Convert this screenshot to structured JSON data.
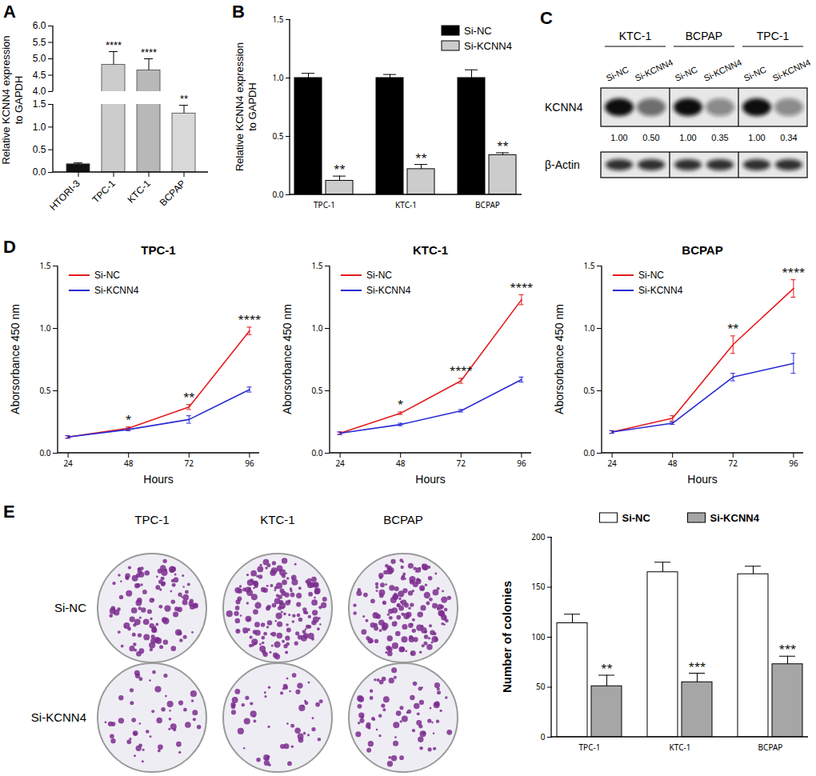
{
  "chart_data": [
    {
      "panel": "A",
      "type": "bar",
      "categories": [
        "HTORI-3",
        "TPC-1",
        "KTC-1",
        "BCPAP"
      ],
      "values": [
        0.18,
        4.82,
        4.65,
        1.3
      ],
      "errors": [
        0.03,
        0.4,
        0.35,
        0.18
      ],
      "significance": [
        null,
        "****",
        "****",
        "**"
      ],
      "colors": [
        "#111111",
        "#cccccc",
        "#b8b8b8",
        "#d9d9d9"
      ],
      "ylabel": "Relative KCNN4 expression\nto GAPDH",
      "ylim": [
        0,
        6
      ],
      "y_break": [
        1.5,
        4
      ],
      "yticks": [
        {
          "value": 0,
          "label": "0.0"
        },
        0.5,
        {
          "value": 1,
          "label": "1.0"
        },
        1.5,
        {
          "value": 4,
          "label": "4.0"
        },
        4.5,
        {
          "value": 5,
          "label": "5.0"
        },
        5.5,
        {
          "value": 6,
          "label": "6.0"
        }
      ]
    },
    {
      "panel": "B",
      "type": "bar",
      "categories": [
        "TPC-1",
        "KTC-1",
        "BCPAP"
      ],
      "series": [
        {
          "name": "Si-NC",
          "color": "#000000",
          "values": [
            1,
            1,
            1
          ],
          "errors": [
            0.04,
            0.03,
            0.07
          ],
          "significance": [
            null,
            null,
            null
          ]
        },
        {
          "name": "Si-KCNN4",
          "color": "#cccccc",
          "values": [
            0.12,
            0.22,
            0.34
          ],
          "errors": [
            0.04,
            0.04,
            0.02
          ],
          "significance": [
            "**",
            "**",
            "**"
          ]
        }
      ],
      "ylabel": "Relative KCNN4 expression\nto GAPDH",
      "ylim": [
        0,
        1.5
      ],
      "yticks": [
        {
          "value": 0,
          "label": "0.0"
        },
        0.5,
        {
          "value": 1,
          "label": "1.0"
        },
        1.5
      ],
      "legend": "top-right"
    },
    {
      "panel": "D",
      "type": "line",
      "title": "TPC-1",
      "x": [
        24,
        48,
        72,
        96
      ],
      "series": [
        {
          "name": "Si-NC",
          "color": "#e41a1c",
          "values": [
            0.13,
            0.2,
            0.37,
            0.98
          ],
          "errors": [
            0.01,
            0.01,
            0.02,
            0.03
          ]
        },
        {
          "name": "Si-KCNN4",
          "color": "#2a2ad4",
          "values": [
            0.13,
            0.19,
            0.27,
            0.51
          ],
          "errors": [
            0.01,
            0.01,
            0.03,
            0.02
          ]
        }
      ],
      "significance": [
        null,
        "*",
        "**",
        "****"
      ],
      "xlabel": "Hours",
      "ylabel": "Aborsorbance 450 nm",
      "xlim": [
        20,
        100
      ],
      "xticks": [
        24,
        48,
        72,
        96
      ],
      "ylim": [
        0,
        1.5
      ],
      "yticks": [
        {
          "value": 0,
          "label": "0.0"
        },
        0.5,
        {
          "value": 1,
          "label": "1.0"
        },
        1.5
      ],
      "legend": "top-left"
    },
    {
      "panel": "D",
      "type": "line",
      "title": "KTC-1",
      "x": [
        24,
        48,
        72,
        96
      ],
      "series": [
        {
          "name": "Si-NC",
          "color": "#e41a1c",
          "values": [
            0.16,
            0.32,
            0.58,
            1.23
          ],
          "errors": [
            0.01,
            0.01,
            0.02,
            0.04
          ]
        },
        {
          "name": "Si-KCNN4",
          "color": "#2a2ad4",
          "values": [
            0.16,
            0.23,
            0.34,
            0.59
          ],
          "errors": [
            0.01,
            0.01,
            0.01,
            0.02
          ]
        }
      ],
      "significance": [
        null,
        "*",
        "****",
        "****"
      ],
      "xlabel": "Hours",
      "ylabel": "Aborsorbance 450 nm",
      "xlim": [
        20,
        100
      ],
      "xticks": [
        24,
        48,
        72,
        96
      ],
      "ylim": [
        0,
        1.5
      ],
      "yticks": [
        {
          "value": 0,
          "label": "0.0"
        },
        0.5,
        {
          "value": 1,
          "label": "1.0"
        },
        1.5
      ],
      "legend": "top-left"
    },
    {
      "panel": "D",
      "type": "line",
      "title": "BCPAP",
      "x": [
        24,
        48,
        72,
        96
      ],
      "series": [
        {
          "name": "Si-NC",
          "color": "#e41a1c",
          "values": [
            0.17,
            0.28,
            0.87,
            1.32
          ],
          "errors": [
            0.01,
            0.02,
            0.07,
            0.07
          ]
        },
        {
          "name": "Si-KCNN4",
          "color": "#2a2ad4",
          "values": [
            0.17,
            0.24,
            0.61,
            0.72
          ],
          "errors": [
            0.01,
            0.01,
            0.03,
            0.08
          ]
        }
      ],
      "significance": [
        null,
        null,
        "**",
        "****"
      ],
      "xlabel": "Hours",
      "ylabel": "Aborsorbance 450 nm",
      "xlim": [
        20,
        100
      ],
      "xticks": [
        24,
        48,
        72,
        96
      ],
      "ylim": [
        0,
        1.5
      ],
      "yticks": [
        {
          "value": 0,
          "label": "0.0"
        },
        0.5,
        {
          "value": 1,
          "label": "1.0"
        },
        1.5
      ],
      "legend": "top-left"
    },
    {
      "panel": "E",
      "type": "bar",
      "categories": [
        "TPC-1",
        "KTC-1",
        "BCPAP"
      ],
      "series": [
        {
          "name": "Si-NC",
          "color": "#ffffff",
          "values": [
            114,
            165,
            163
          ],
          "errors": [
            9,
            10,
            8
          ],
          "significance": [
            null,
            null,
            null
          ]
        },
        {
          "name": "Si-KCNN4",
          "color": "#a6a6a6",
          "values": [
            51,
            55,
            73
          ],
          "errors": [
            11,
            9,
            8
          ],
          "significance": [
            "**",
            "***",
            "***"
          ]
        }
      ],
      "ylabel": "Number of colonies",
      "ylim": [
        0,
        200
      ],
      "yticks": [
        0,
        50,
        100,
        150,
        200
      ],
      "legend": "top"
    }
  ],
  "blot": {
    "panel": "C",
    "cell_lines": [
      "KTC-1",
      "BCPAP",
      "TPC-1"
    ],
    "lanes": [
      "Si-NC",
      "Si-KCNN4"
    ],
    "rows": [
      "KCNN4",
      "β-Actin"
    ],
    "ratios": [
      [
        "1.00",
        "0.50"
      ],
      [
        "1.00",
        "0.35"
      ],
      [
        "1.00",
        "0.34"
      ]
    ]
  },
  "colony_plates": {
    "panel": "E",
    "columns": [
      "TPC-1",
      "KTC-1",
      "BCPAP"
    ],
    "rows": [
      "Si-NC",
      "Si-KCNN4"
    ]
  }
}
